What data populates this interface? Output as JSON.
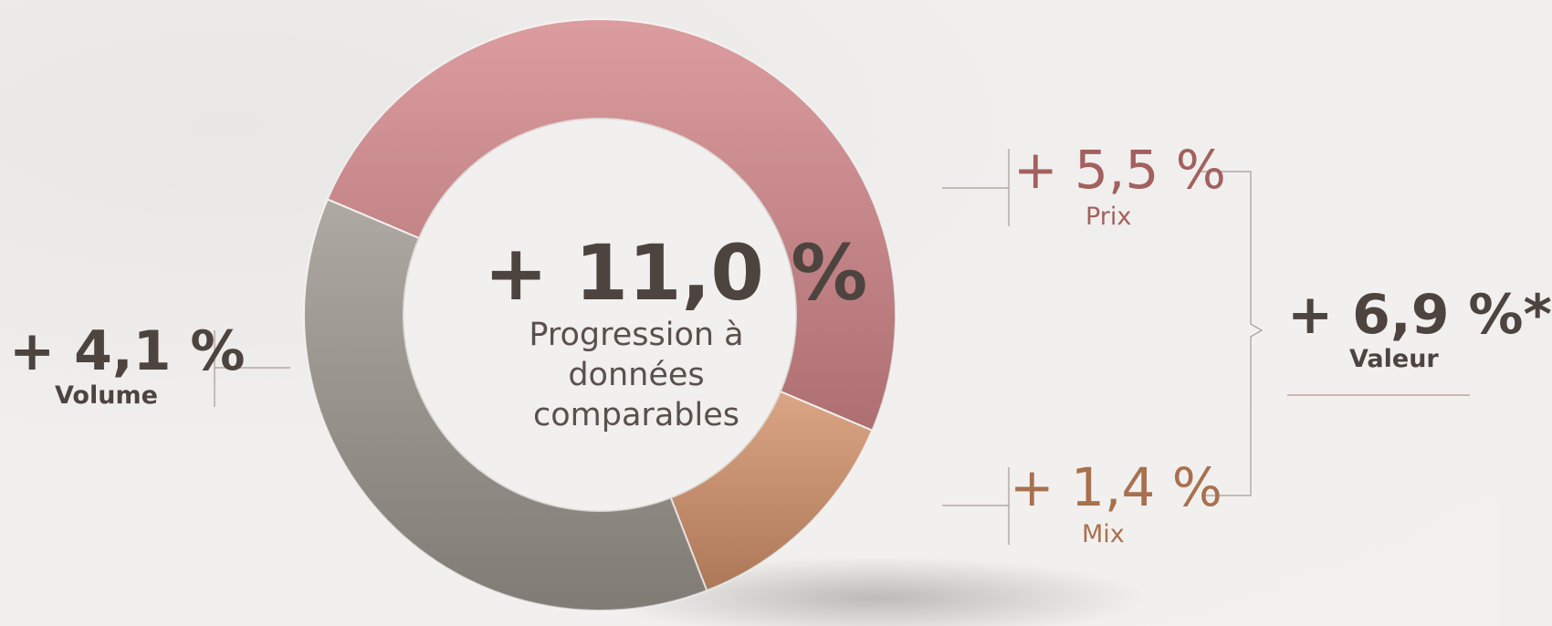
{
  "chart_data": {
    "type": "pie",
    "categories": [
      "Prix",
      "Mix",
      "Volume"
    ],
    "values": [
      5.5,
      1.4,
      4.1
    ],
    "value_labels": [
      "+ 5,5 %",
      "+ 1,4 %",
      "+ 4,1 %"
    ],
    "colors": [
      "#d4878b",
      "#d3926a",
      "#9d968f"
    ],
    "center_label": "+ 11,0 %",
    "center_text": "Progression à données comparables",
    "group_label": "+ 6,9 %*",
    "group_text": "Valeur"
  }
}
